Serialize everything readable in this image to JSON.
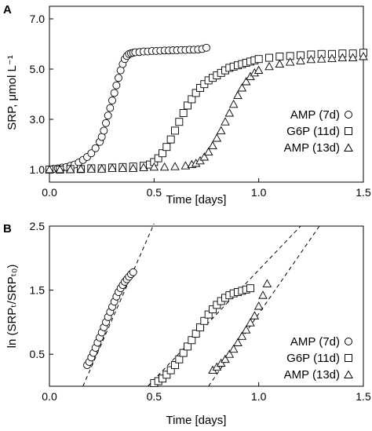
{
  "chart_data": [
    {
      "panel": "A",
      "type": "scatter",
      "xlabel": "Time [days]",
      "ylabel": "SRP, μmol L⁻¹",
      "xlim": [
        0.0,
        1.5
      ],
      "ylim": [
        0.5,
        7.5
      ],
      "xticks": [
        "0.0",
        "0.5",
        "1.0",
        "1.5"
      ],
      "yticks": [
        "1.0",
        "3.0",
        "5.0",
        "7.0"
      ],
      "legend_position": "right",
      "grid": false,
      "series": [
        {
          "name": "AMP (7d)",
          "marker": "circle",
          "x": [
            0.0,
            0.02,
            0.04,
            0.06,
            0.08,
            0.1,
            0.12,
            0.14,
            0.16,
            0.18,
            0.2,
            0.22,
            0.24,
            0.25,
            0.26,
            0.27,
            0.28,
            0.29,
            0.3,
            0.31,
            0.32,
            0.33,
            0.34,
            0.35,
            0.36,
            0.37,
            0.38,
            0.39,
            0.4,
            0.41,
            0.43,
            0.45,
            0.47,
            0.49,
            0.51,
            0.53,
            0.55,
            0.57,
            0.59,
            0.61,
            0.63,
            0.65,
            0.67,
            0.69,
            0.71,
            0.73,
            0.75
          ],
          "y": [
            1.0,
            1.03,
            1.05,
            1.08,
            1.1,
            1.15,
            1.2,
            1.28,
            1.38,
            1.5,
            1.65,
            1.85,
            2.1,
            2.3,
            2.55,
            2.85,
            3.15,
            3.45,
            3.75,
            4.05,
            4.35,
            4.65,
            4.95,
            5.2,
            5.4,
            5.52,
            5.6,
            5.63,
            5.65,
            5.67,
            5.68,
            5.7,
            5.7,
            5.72,
            5.72,
            5.73,
            5.74,
            5.74,
            5.75,
            5.75,
            5.76,
            5.76,
            5.77,
            5.77,
            5.78,
            5.8,
            5.85
          ]
        },
        {
          "name": "G6P (11d)",
          "marker": "square",
          "x": [
            0.0,
            0.05,
            0.1,
            0.15,
            0.2,
            0.25,
            0.3,
            0.35,
            0.4,
            0.45,
            0.48,
            0.5,
            0.52,
            0.54,
            0.56,
            0.58,
            0.6,
            0.62,
            0.64,
            0.66,
            0.68,
            0.7,
            0.72,
            0.74,
            0.76,
            0.78,
            0.8,
            0.82,
            0.84,
            0.86,
            0.88,
            0.9,
            0.92,
            0.94,
            0.96,
            0.98,
            1.0,
            1.05,
            1.1,
            1.15,
            1.2,
            1.25,
            1.3,
            1.35,
            1.4,
            1.45,
            1.5
          ],
          "y": [
            1.0,
            1.0,
            1.02,
            1.02,
            1.05,
            1.05,
            1.08,
            1.1,
            1.12,
            1.15,
            1.2,
            1.3,
            1.45,
            1.65,
            1.9,
            2.2,
            2.55,
            2.9,
            3.25,
            3.55,
            3.8,
            4.05,
            4.25,
            4.4,
            4.55,
            4.65,
            4.75,
            4.85,
            4.95,
            5.05,
            5.1,
            5.15,
            5.2,
            5.25,
            5.3,
            5.35,
            5.4,
            5.45,
            5.5,
            5.52,
            5.55,
            5.58,
            5.6,
            5.6,
            5.62,
            5.62,
            5.65
          ]
        },
        {
          "name": "AMP (13d)",
          "marker": "triangle",
          "x": [
            0.0,
            0.05,
            0.1,
            0.15,
            0.2,
            0.25,
            0.3,
            0.35,
            0.4,
            0.45,
            0.5,
            0.55,
            0.6,
            0.65,
            0.68,
            0.7,
            0.72,
            0.74,
            0.76,
            0.78,
            0.8,
            0.82,
            0.84,
            0.86,
            0.88,
            0.9,
            0.92,
            0.94,
            0.96,
            0.98,
            1.0,
            1.05,
            1.1,
            1.15,
            1.2,
            1.25,
            1.3,
            1.35,
            1.4,
            1.45,
            1.5
          ],
          "y": [
            1.0,
            1.0,
            1.0,
            1.02,
            1.02,
            1.02,
            1.05,
            1.05,
            1.05,
            1.08,
            1.1,
            1.1,
            1.12,
            1.15,
            1.2,
            1.25,
            1.35,
            1.5,
            1.7,
            1.95,
            2.25,
            2.55,
            2.9,
            3.25,
            3.6,
            3.95,
            4.25,
            4.5,
            4.7,
            4.85,
            4.95,
            5.1,
            5.2,
            5.28,
            5.33,
            5.38,
            5.4,
            5.42,
            5.45,
            5.45,
            5.5
          ]
        }
      ]
    },
    {
      "panel": "B",
      "type": "scatter",
      "xlabel": "Time [days]",
      "ylabel": "ln (SRPₜ/SRPₜ₀)",
      "xlim": [
        0.0,
        1.5
      ],
      "ylim": [
        0.0,
        2.5
      ],
      "xticks": [
        "0.0",
        "0.5",
        "1.0",
        "1.5"
      ],
      "yticks": [
        "0.5",
        "1.5",
        "2.5"
      ],
      "legend_position": "right",
      "grid": false,
      "series": [
        {
          "name": "AMP (7d)",
          "marker": "circle",
          "x": [
            0.18,
            0.19,
            0.2,
            0.21,
            0.22,
            0.23,
            0.24,
            0.25,
            0.26,
            0.27,
            0.28,
            0.29,
            0.3,
            0.31,
            0.32,
            0.33,
            0.34,
            0.35,
            0.36,
            0.37,
            0.38,
            0.39,
            0.4
          ],
          "y": [
            0.33,
            0.38,
            0.45,
            0.52,
            0.6,
            0.68,
            0.76,
            0.84,
            0.92,
            1.0,
            1.08,
            1.16,
            1.24,
            1.32,
            1.4,
            1.47,
            1.53,
            1.58,
            1.63,
            1.67,
            1.71,
            1.75,
            1.78
          ]
        },
        {
          "name": "G6P (11d)",
          "marker": "square",
          "x": [
            0.5,
            0.52,
            0.54,
            0.56,
            0.58,
            0.6,
            0.62,
            0.64,
            0.66,
            0.68,
            0.7,
            0.72,
            0.74,
            0.76,
            0.78,
            0.8,
            0.82,
            0.84,
            0.86,
            0.88,
            0.9,
            0.92,
            0.94,
            0.96
          ],
          "y": [
            0.05,
            0.08,
            0.12,
            0.18,
            0.25,
            0.33,
            0.42,
            0.52,
            0.62,
            0.72,
            0.82,
            0.92,
            1.02,
            1.12,
            1.2,
            1.27,
            1.33,
            1.38,
            1.42,
            1.45,
            1.47,
            1.49,
            1.51,
            1.53
          ]
        },
        {
          "name": "AMP (13d)",
          "marker": "triangle",
          "x": [
            0.78,
            0.8,
            0.82,
            0.84,
            0.86,
            0.88,
            0.9,
            0.92,
            0.94,
            0.96,
            0.98,
            1.0,
            1.02,
            1.04
          ],
          "y": [
            0.25,
            0.3,
            0.36,
            0.42,
            0.5,
            0.58,
            0.68,
            0.78,
            0.88,
            0.99,
            1.1,
            1.25,
            1.42,
            1.6
          ]
        }
      ],
      "fit_lines": [
        {
          "series": "AMP (7d)",
          "x": [
            0.16,
            0.5
          ],
          "y": [
            0.0,
            2.54
          ]
        },
        {
          "series": "G6P (11d)",
          "x": [
            0.47,
            1.2
          ],
          "y": [
            0.0,
            2.5
          ]
        },
        {
          "series": "AMP (13d)",
          "x": [
            0.76,
            1.29
          ],
          "y": [
            0.0,
            2.5
          ]
        }
      ]
    }
  ],
  "legend": [
    {
      "label": "AMP (7d)",
      "marker": "circle"
    },
    {
      "label": "G6P (11d)",
      "marker": "square"
    },
    {
      "label": "AMP (13d)",
      "marker": "triangle"
    }
  ]
}
